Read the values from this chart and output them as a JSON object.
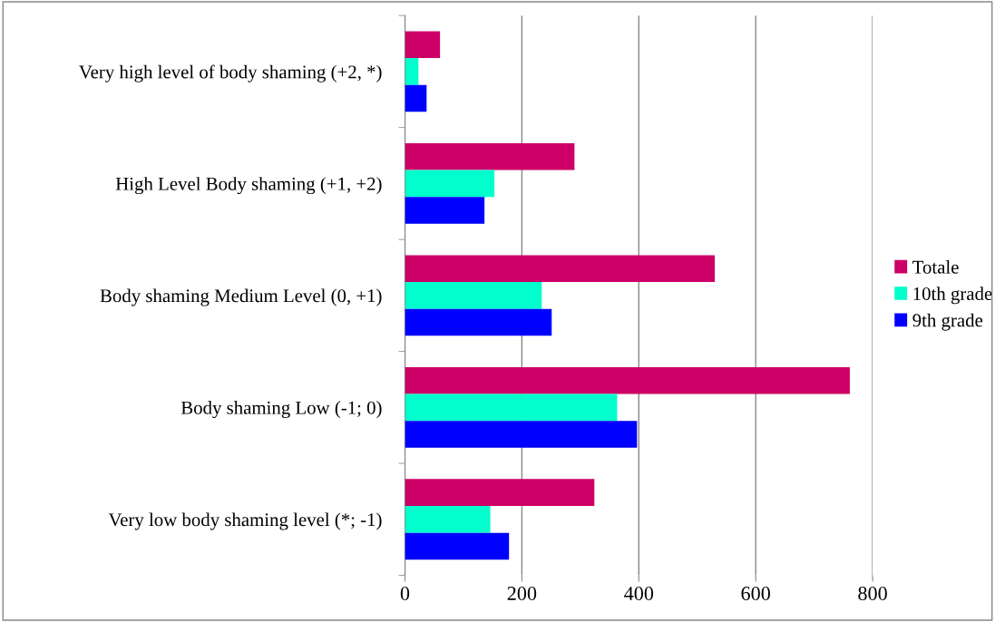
{
  "chart_data": {
    "type": "bar",
    "orientation": "horizontal",
    "categories": [
      "Very high level of body shaming (+2, *)",
      "High Level Body shaming (+1, +2)",
      "Body shaming Medium Level (0, +1)",
      "Body shaming Low (-1; 0)",
      "Very low body shaming level (*; -1)"
    ],
    "series": [
      {
        "name": "Totale",
        "color": "#cc0066",
        "values": [
          60,
          290,
          530,
          761,
          324
        ]
      },
      {
        "name": "10th grade",
        "color": "#00ffcc",
        "values": [
          23,
          153,
          234,
          363,
          146
        ]
      },
      {
        "name": "9th grade",
        "color": "#0000ff",
        "values": [
          37,
          136,
          251,
          397,
          178
        ]
      }
    ],
    "xlim": [
      0,
      800
    ],
    "xticks": [
      0,
      200,
      400,
      600,
      800
    ],
    "grid": "x",
    "legend": "right"
  }
}
